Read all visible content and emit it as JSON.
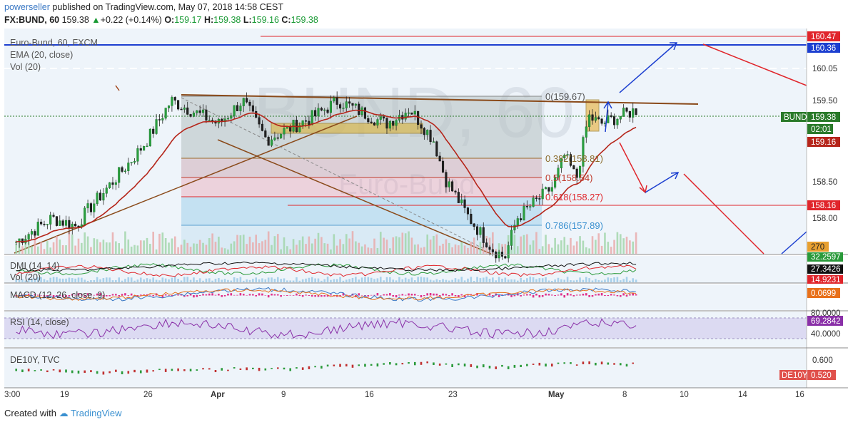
{
  "header": {
    "author": "powerseller",
    "published": "published on TradingView.com, May 07, 2018 14:58 CEST",
    "symbol": "FX:BUND, 60",
    "last": "159.38",
    "change": "+0.22 (+0.14%)",
    "o_label": "O:",
    "o": "159.17",
    "h_label": "H:",
    "h": "159.38",
    "l_label": "L:",
    "l": "159.16",
    "c_label": "C:",
    "c": "159.38"
  },
  "legend": {
    "main": "Euro-Bund, 60, FXCM",
    "ema": "EMA (20, close)",
    "vol": "Vol (20)"
  },
  "watermark": {
    "big": "BUND, 60",
    "small": "Euro-Bund"
  },
  "panes": {
    "dmi": "DMI (14, 14)",
    "vol2": "Vol (20)",
    "macd": "MACD (12, 26, close, 9)",
    "rsi": "RSI (14, close)",
    "de10y": "DE10Y, TVC"
  },
  "fib_labels": [
    "0(159.67)",
    "0.382(158.81)",
    "0.5(158.54)",
    "0.618(158.27)",
    "0.786(157.89)"
  ],
  "price_axis": {
    "ticks": [
      "160.05",
      "159.50",
      "158.50",
      "158.00"
    ],
    "tags": {
      "r1": "160.47",
      "r2": "160.36",
      "bund_label": "BUND",
      "bund": "159.38",
      "timer": "02:01",
      "low": "159.16",
      "support": "158.16",
      "vol": "270"
    }
  },
  "indicator_axis": {
    "dmi": [
      "32.2597",
      "27.3426",
      "14.9231"
    ],
    "macd": "0.0699",
    "rsi": [
      "80.0000",
      "69.2842",
      "40.0000"
    ],
    "de10y_tick": "0.600",
    "de10y_label": "DE10Y",
    "de10y_value": "0.520"
  },
  "time_axis": [
    "3:00",
    "19",
    "26",
    "Apr",
    "9",
    "16",
    "23",
    "May",
    "8",
    "10",
    "14",
    "16"
  ],
  "footer": {
    "created": "Created with",
    "brand": "TradingView"
  },
  "colors": {
    "up": "#1a9a35",
    "fib_red": "#e0252b",
    "blue": "#1c3fd0",
    "ema": "#b5251a"
  },
  "chart_data": {
    "type": "candlestick",
    "symbol": "FX:BUND",
    "timeframe": "60",
    "ohlc_last": {
      "open": 159.17,
      "high": 159.38,
      "low": 159.16,
      "close": 159.38
    },
    "fibonacci": [
      {
        "level": 0,
        "price": 159.67
      },
      {
        "level": 0.382,
        "price": 158.81
      },
      {
        "level": 0.5,
        "price": 158.54
      },
      {
        "level": 0.618,
        "price": 158.27
      },
      {
        "level": 0.786,
        "price": 157.89
      }
    ],
    "horizontal_levels": [
      160.47,
      160.36,
      160.05,
      158.16
    ],
    "close_path": [
      {
        "x": "Mar 16",
        "y": 157.7
      },
      {
        "x": "Mar 19",
        "y": 158.0
      },
      {
        "x": "Mar 21",
        "y": 157.9
      },
      {
        "x": "Mar 22",
        "y": 158.1
      },
      {
        "x": "Mar 26",
        "y": 158.8
      },
      {
        "x": "Mar 27",
        "y": 159.0
      },
      {
        "x": "Mar 29",
        "y": 159.5
      },
      {
        "x": "Apr 2",
        "y": 159.2
      },
      {
        "x": "Apr 4",
        "y": 159.5
      },
      {
        "x": "Apr 6",
        "y": 159.0
      },
      {
        "x": "Apr 10",
        "y": 159.3
      },
      {
        "x": "Apr 12",
        "y": 159.5
      },
      {
        "x": "Apr 16",
        "y": 159.2
      },
      {
        "x": "Apr 18",
        "y": 159.4
      },
      {
        "x": "Apr 20",
        "y": 159.0
      },
      {
        "x": "Apr 21",
        "y": 158.5
      },
      {
        "x": "Apr 23",
        "y": 158.0
      },
      {
        "x": "Apr 25",
        "y": 157.6
      },
      {
        "x": "Apr 26",
        "y": 157.5
      },
      {
        "x": "Apr 27",
        "y": 158.0
      },
      {
        "x": "Apr 30",
        "y": 158.4
      },
      {
        "x": "May 1",
        "y": 158.8
      },
      {
        "x": "May 2",
        "y": 158.5
      },
      {
        "x": "May 3",
        "y": 159.3
      },
      {
        "x": "May 4",
        "y": 159.2
      },
      {
        "x": "May 7",
        "y": 159.38
      }
    ],
    "dmi": {
      "plus": 32.2597,
      "adx": 27.3426,
      "minus": 14.9231
    },
    "macd": 0.0699,
    "rsi": 69.2842,
    "de10y": 0.52
  }
}
